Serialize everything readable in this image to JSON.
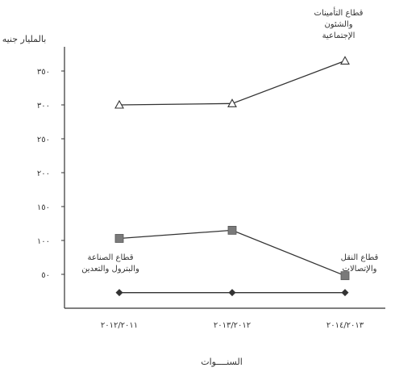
{
  "chart_data": {
    "type": "line",
    "ylabel": "بالمليار جنيه",
    "xlabel": "السنــــوات",
    "ylim": [
      0,
      400
    ],
    "yticks": [
      {
        "value": 50,
        "label": "٥٠"
      },
      {
        "value": 100,
        "label": "١٠٠"
      },
      {
        "value": 150,
        "label": "١٥٠"
      },
      {
        "value": 200,
        "label": "٢٠٠"
      },
      {
        "value": 250,
        "label": "٢٥٠"
      },
      {
        "value": 300,
        "label": "٣٠٠"
      },
      {
        "value": 350,
        "label": "٣٥٠"
      }
    ],
    "categories": [
      "٢٠١٢/٢٠١١",
      "٢٠١٣/٢٠١٢",
      "٢٠١٤/٢٠١٣"
    ],
    "series": [
      {
        "name": "قطاع التأمينات والشئون الإجتماعية",
        "marker": "triangle",
        "values": [
          300,
          302,
          365
        ]
      },
      {
        "name": "قطاع الصناعة والبترول والتعدين",
        "marker": "square",
        "values": [
          103,
          115,
          48
        ]
      },
      {
        "name": "قطاع النقل والإتصالات",
        "marker": "diamond",
        "values": [
          23,
          23,
          23
        ]
      }
    ],
    "annotations": [
      {
        "series": 0,
        "lines": [
          "قطاع التأمينات",
          "والشئون",
          "الإجتماعية"
        ]
      },
      {
        "series": 1,
        "lines": [
          "قطاع الصناعة",
          "والبترول والتعدين"
        ]
      },
      {
        "series": 2,
        "lines": [
          "قطاع النقل",
          "والإتصالات"
        ]
      }
    ],
    "colors": {
      "line": "#333333",
      "square": "#7a7a7a",
      "diamond": "#333333"
    }
  }
}
